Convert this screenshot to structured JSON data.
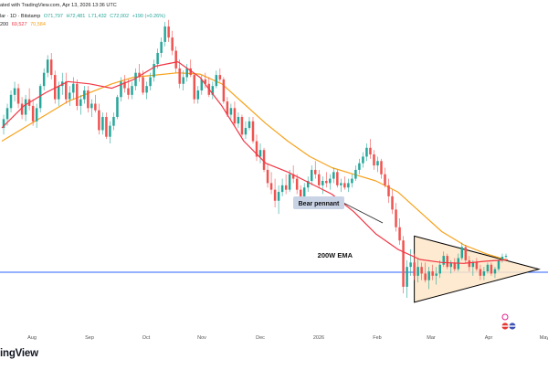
{
  "header": {
    "line1": "ated with TradingView.com, Apr 13, 2026 13:36 UTC",
    "line2_prefix": "lar · 1D · Bitstamp",
    "ohlc": {
      "open": "O71,797",
      "high": "H72,481",
      "low": "L71,432",
      "close": "C72,002",
      "change": "+190 (+0.26%)"
    },
    "line3_prefix": "200",
    "ema1": "69,527",
    "ema2": "70,584"
  },
  "brand_text": "ingView",
  "annotations": {
    "bear_pennant": "Bear pennant",
    "ema_200w": "200W EMA"
  },
  "colors": {
    "up": "#26a69a",
    "down": "#ef5350",
    "ema_fast": "#f23645",
    "ema_slow": "#f7a21b",
    "ema_200w": "#2962ff",
    "pennant_fill": "#fde6c8",
    "pennant_line": "#000000",
    "callout_bg": "#c9d3e6",
    "marker": "#e91e8c"
  },
  "chart_data": {
    "type": "candlestick",
    "x_tick_labels": [
      "Aug",
      "Sep",
      "Oct",
      "Nov",
      "Dec",
      "2026",
      "Feb",
      "Mar",
      "Apr",
      "May"
    ],
    "emas": [
      {
        "values": [
          101000,
          106000,
          109000,
          111500,
          111000,
          110000,
          112000,
          115000,
          116000,
          112500,
          106000,
          98000,
          93000,
          91000,
          88500,
          86000,
          82000,
          77000,
          73500,
          71200,
          70500,
          70300,
          70800,
          71100
        ]
      },
      {
        "values": [
          98000,
          101000,
          104000,
          107000,
          109000,
          111000,
          112500,
          113000,
          113500,
          113200,
          111000,
          106500,
          102000,
          98000,
          94500,
          92000,
          90500,
          89000,
          86500,
          82000,
          77500,
          74500,
          72500,
          71000
        ]
      }
    ],
    "levels": [
      {
        "value": 68300
      }
    ],
    "pennant": {
      "apex": 69000
    },
    "candles": [
      [
        101000,
        104000,
        99500,
        103000
      ],
      [
        103000,
        106500,
        101500,
        105500
      ],
      [
        105500,
        109500,
        104500,
        108500
      ],
      [
        108500,
        111500,
        107000,
        110000
      ],
      [
        110000,
        111000,
        105500,
        106500
      ],
      [
        106500,
        108000,
        103000,
        104000
      ],
      [
        104000,
        108500,
        102500,
        107500
      ],
      [
        107500,
        110000,
        105000,
        106000
      ],
      [
        106000,
        107500,
        101500,
        102500
      ],
      [
        102500,
        106500,
        101000,
        105500
      ],
      [
        105500,
        111000,
        104500,
        110500
      ],
      [
        110500,
        114500,
        109500,
        113500
      ],
      [
        113500,
        117500,
        112500,
        116500
      ],
      [
        116500,
        118000,
        112000,
        113000
      ],
      [
        113000,
        114000,
        106500,
        107500
      ],
      [
        107500,
        111500,
        106000,
        110500
      ],
      [
        110500,
        113500,
        108500,
        111500
      ],
      [
        111500,
        113500,
        106500,
        107500
      ],
      [
        107500,
        110500,
        106000,
        109000
      ],
      [
        109000,
        112500,
        107500,
        111000
      ],
      [
        111000,
        112000,
        105000,
        106000
      ],
      [
        106000,
        108500,
        104000,
        107500
      ],
      [
        107500,
        110500,
        106500,
        109500
      ],
      [
        109500,
        110500,
        104500,
        105500
      ],
      [
        105500,
        107500,
        103500,
        106500
      ],
      [
        106500,
        108500,
        104500,
        105000
      ],
      [
        105000,
        106500,
        99500,
        100500
      ],
      [
        100500,
        104500,
        99500,
        103500
      ],
      [
        103500,
        104500,
        98500,
        99000
      ],
      [
        99000,
        102500,
        97500,
        101500
      ],
      [
        101500,
        104500,
        100500,
        103500
      ],
      [
        103500,
        108500,
        103000,
        108000
      ],
      [
        108000,
        112500,
        107000,
        111500
      ],
      [
        111500,
        113000,
        109000,
        110000
      ],
      [
        110000,
        112000,
        107500,
        108500
      ],
      [
        108500,
        111500,
        107500,
        110500
      ],
      [
        110500,
        114500,
        109500,
        113500
      ],
      [
        113500,
        115500,
        111500,
        112500
      ],
      [
        112500,
        114000,
        108500,
        109000
      ],
      [
        109000,
        111500,
        107500,
        110500
      ],
      [
        110500,
        113500,
        109500,
        112500
      ],
      [
        112500,
        116500,
        111500,
        115500
      ],
      [
        115500,
        119000,
        114500,
        118000
      ],
      [
        118000,
        121500,
        117000,
        120500
      ],
      [
        120500,
        125000,
        119500,
        124000
      ],
      [
        124000,
        125500,
        120500,
        121500
      ],
      [
        121500,
        123000,
        117500,
        118500
      ],
      [
        118500,
        119500,
        113500,
        114500
      ],
      [
        114500,
        116500,
        110000,
        111000
      ],
      [
        111000,
        114000,
        109500,
        112500
      ],
      [
        112500,
        115500,
        111500,
        114500
      ],
      [
        114500,
        116500,
        112500,
        113000
      ],
      [
        113000,
        113500,
        106500,
        107500
      ],
      [
        107500,
        110500,
        106500,
        109500
      ],
      [
        109500,
        113000,
        108500,
        112000
      ],
      [
        112000,
        113500,
        110000,
        111000
      ],
      [
        111000,
        112500,
        108000,
        108500
      ],
      [
        108500,
        111500,
        107500,
        110500
      ],
      [
        110500,
        114000,
        110000,
        113000
      ],
      [
        113000,
        114500,
        111500,
        112000
      ],
      [
        112000,
        112500,
        106500,
        107000
      ],
      [
        107000,
        108000,
        103500,
        104000
      ],
      [
        104000,
        106500,
        103000,
        105500
      ],
      [
        105500,
        107000,
        101500,
        102000
      ],
      [
        102000,
        104500,
        101000,
        103500
      ],
      [
        103500,
        104000,
        99000,
        99500
      ],
      [
        99500,
        102500,
        98500,
        101000
      ],
      [
        101000,
        103500,
        100500,
        102500
      ],
      [
        102500,
        103500,
        97500,
        98000
      ],
      [
        98000,
        99500,
        93500,
        94500
      ],
      [
        94500,
        97500,
        93000,
        96000
      ],
      [
        96000,
        96500,
        91000,
        91500
      ],
      [
        91500,
        93000,
        87500,
        88500
      ],
      [
        88500,
        91000,
        86000,
        87000
      ],
      [
        87000,
        89500,
        83000,
        84500
      ],
      [
        84500,
        88000,
        81500,
        86500
      ],
      [
        86500,
        89500,
        85500,
        88000
      ],
      [
        88000,
        90500,
        86000,
        87000
      ],
      [
        87000,
        91500,
        86500,
        90500
      ],
      [
        90500,
        92500,
        88500,
        89500
      ],
      [
        89500,
        90500,
        86000,
        87000
      ],
      [
        87000,
        88000,
        84000,
        85000
      ],
      [
        85000,
        88500,
        84500,
        87500
      ],
      [
        87500,
        90000,
        86500,
        89000
      ],
      [
        89000,
        92500,
        88000,
        91500
      ],
      [
        91500,
        93500,
        89500,
        90500
      ],
      [
        90500,
        91500,
        87500,
        88000
      ],
      [
        88000,
        90000,
        86000,
        89000
      ],
      [
        89000,
        91000,
        87500,
        88500
      ],
      [
        88500,
        90500,
        87000,
        89500
      ],
      [
        89500,
        92000,
        88500,
        91000
      ],
      [
        91000,
        91500,
        87500,
        88000
      ],
      [
        88000,
        89500,
        86500,
        88500
      ],
      [
        88500,
        90000,
        87000,
        87500
      ],
      [
        87500,
        89500,
        86500,
        88500
      ],
      [
        88500,
        90500,
        87500,
        89500
      ],
      [
        89500,
        92500,
        89000,
        91500
      ],
      [
        91500,
        94000,
        90500,
        93000
      ],
      [
        93000,
        95500,
        92000,
        94500
      ],
      [
        94500,
        97500,
        93500,
        96500
      ],
      [
        96500,
        98500,
        94000,
        95000
      ],
      [
        95000,
        96000,
        91500,
        92500
      ],
      [
        92500,
        94500,
        91000,
        93500
      ],
      [
        93500,
        94000,
        89500,
        90500
      ],
      [
        90500,
        92000,
        87500,
        88000
      ],
      [
        88000,
        89500,
        84000,
        85500
      ],
      [
        85500,
        87000,
        81500,
        82500
      ],
      [
        82500,
        84000,
        77500,
        78500
      ],
      [
        78500,
        80500,
        74500,
        75500
      ],
      [
        75500,
        76500,
        63500,
        65000
      ],
      [
        65000,
        71000,
        62500,
        69500
      ],
      [
        69500,
        73500,
        67500,
        70500
      ],
      [
        70500,
        72500,
        66500,
        67500
      ],
      [
        67500,
        71500,
        66000,
        69500
      ],
      [
        69500,
        70500,
        66500,
        68000
      ],
      [
        68000,
        70500,
        66000,
        66500
      ],
      [
        66500,
        69500,
        64500,
        68500
      ],
      [
        68500,
        70000,
        66500,
        67500
      ],
      [
        67500,
        69500,
        65500,
        68000
      ],
      [
        68000,
        71000,
        67000,
        70000
      ],
      [
        70000,
        73000,
        69500,
        72000
      ],
      [
        72000,
        72500,
        69000,
        69500
      ],
      [
        69500,
        71000,
        68000,
        70500
      ],
      [
        70500,
        71500,
        68500,
        69000
      ],
      [
        69000,
        72500,
        68500,
        71500
      ],
      [
        71500,
        75000,
        71000,
        74000
      ],
      [
        74000,
        74500,
        70500,
        71000
      ],
      [
        71000,
        72000,
        68500,
        69500
      ],
      [
        69500,
        71000,
        67500,
        70500
      ],
      [
        70500,
        71500,
        68500,
        69000
      ],
      [
        69000,
        70000,
        66500,
        67500
      ],
      [
        67500,
        69500,
        66500,
        68500
      ],
      [
        68500,
        70500,
        68000,
        70000
      ],
      [
        70000,
        70500,
        67500,
        68000
      ],
      [
        68000,
        69500,
        67000,
        69000
      ],
      [
        69000,
        71500,
        68500,
        71000
      ],
      [
        71000,
        72500,
        70500,
        71800
      ],
      [
        71800,
        72500,
        71400,
        72002
      ]
    ]
  }
}
